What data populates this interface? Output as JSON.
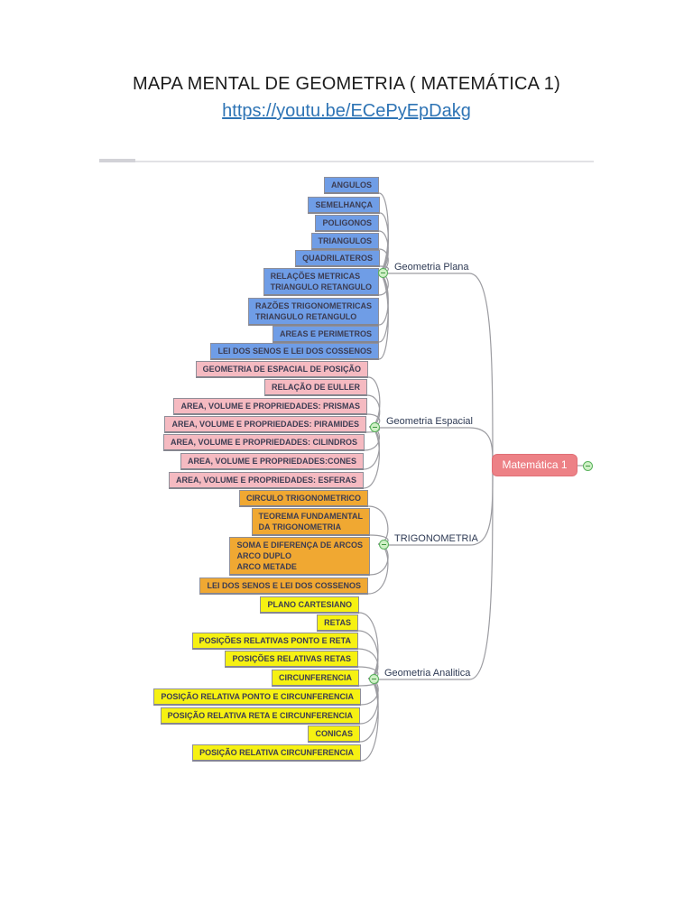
{
  "page": {
    "title": "MAPA MENTAL DE GEOMETRIA ( MATEMÁTICA 1)",
    "video_link": "https://youtu.be/ECePyEpDakg"
  },
  "colors": {
    "accent_link": "#2e74b5",
    "branch_blue": "#6f9de6",
    "branch_pink": "#f5bac1",
    "branch_orange": "#f0a832",
    "branch_yellow": "#f6f112",
    "root_pink": "#ed8186",
    "connector_gray": "#9c9ca1",
    "collapse_green": "#59b25c"
  },
  "mindmap": {
    "root": {
      "label": "Matemática 1"
    },
    "collapse_icon": "minus",
    "branches": [
      {
        "label": "Geometria Plana",
        "children": [
          "ANGULOS",
          "SEMELHANÇA",
          "POLIGONOS",
          "TRIANGULOS",
          "QUADRILATEROS",
          "RELAÇÕES METRICAS\nTRIANGULO RETANGULO",
          "RAZÕES TRIGONOMETRICAS\nTRIANGULO RETANGULO",
          "AREAS E PERIMETROS",
          "LEI DOS SENOS E LEI DOS COSSENOS"
        ]
      },
      {
        "label": "Geometria Espacial",
        "children": [
          "GEOMETRIA DE ESPACIAL DE POSIÇÃO",
          "RELAÇÃO DE EULLER",
          "AREA, VOLUME E PROPRIEDADES: PRISMAS",
          "AREA, VOLUME E PROPRIEDADES: PIRAMIDES",
          "AREA, VOLUME E PROPRIEDADES: CILINDROS",
          "AREA, VOLUME E PROPRIEDADES:CONES",
          "AREA, VOLUME E PROPRIEDADES: ESFERAS"
        ]
      },
      {
        "label": "TRIGONOMETRIA",
        "children": [
          "CIRCULO TRIGONOMETRICO",
          "TEOREMA FUNDAMENTAL\nDA TRIGONOMETRIA",
          "SOMA E DIFERENÇA DE ARCOS\nARCO DUPLO\nARCO METADE",
          "LEI DOS SENOS E LEI DOS COSSENOS"
        ]
      },
      {
        "label": "Geometria Analitica",
        "children": [
          "PLANO CARTESIANO",
          "RETAS",
          "POSIÇÕES RELATIVAS PONTO E RETA",
          "POSIÇÕES RELATIVAS RETAS",
          "CIRCUNFERENCIA",
          "POSIÇÃO RELATIVA PONTO E CIRCUNFERENCIA",
          "POSIÇÃO RELATIVA RETA E CIRCUNFERENCIA",
          "CONICAS",
          "POSIÇÃO RELATIVA CIRCUNFERENCIA"
        ]
      }
    ]
  }
}
